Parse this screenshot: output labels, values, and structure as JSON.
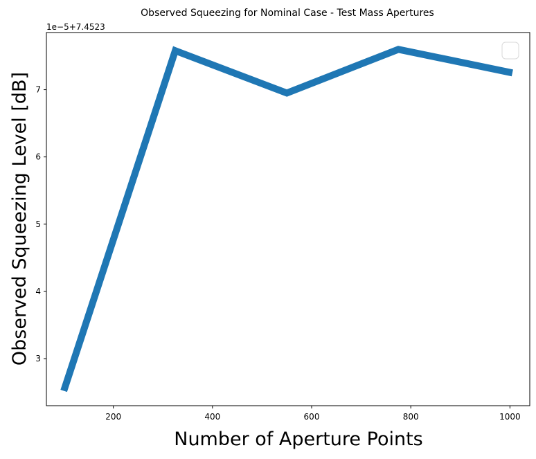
{
  "chart_data": {
    "type": "line",
    "title": "Observed Squeezing for Nominal Case - Test Mass Apertures",
    "xlabel": "Number of Aperture Points",
    "ylabel": "Observed Squeezing Level [dB]",
    "offset_text": "1e−5+7.4523",
    "xlim": [
      65,
      1040
    ],
    "ylim": [
      2.3,
      7.85
    ],
    "x_ticks": [
      200,
      400,
      600,
      800,
      1000
    ],
    "y_ticks": [
      3,
      4,
      5,
      6,
      7
    ],
    "series": [
      {
        "color": "#1f77b4",
        "x": [
          100,
          325,
          550,
          775,
          1005
        ],
        "y": [
          2.52,
          7.58,
          6.95,
          7.6,
          7.25
        ]
      }
    ],
    "legend": {
      "placement": "upper right",
      "entries": []
    },
    "grid": false
  }
}
